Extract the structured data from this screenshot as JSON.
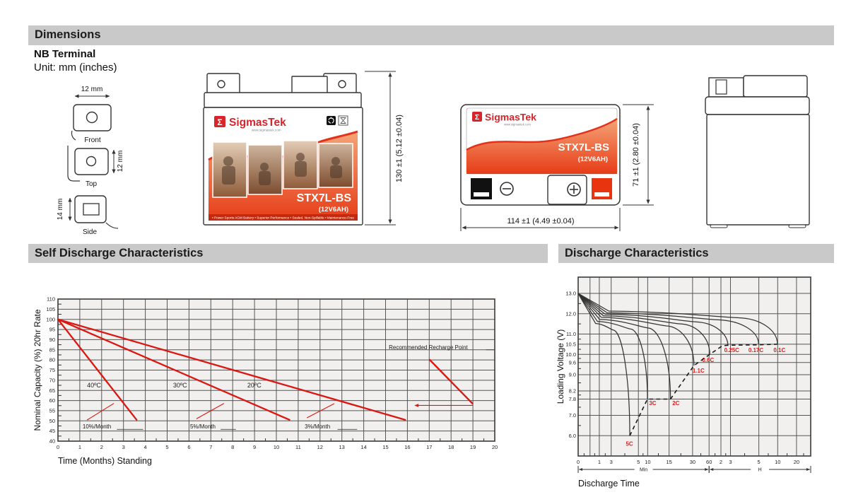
{
  "sections": {
    "dimensions": "Dimensions",
    "self_discharge": "Self Discharge Characteristics",
    "discharge": "Discharge Characteristics"
  },
  "terminal": {
    "heading": "NB Terminal",
    "unit_note": "Unit: mm (inches)",
    "views": [
      {
        "label": "Front",
        "dim": "12 mm"
      },
      {
        "label": "Top",
        "dim": "12 mm"
      },
      {
        "label": "Side",
        "dim": "14 mm"
      }
    ]
  },
  "battery": {
    "brand": "SigmasTek",
    "sigma": "Σ",
    "website": "www.sigmastek.com",
    "model": "STX7L-BS",
    "rating": "(12V6AH)",
    "features": "• Power Sports AGM Battery   • Superior Performance   • Sealed, Non-Spillable   • Maintenance-Free",
    "height_dim": "130 ±1 (5.12 ±0.04)",
    "width_dim": "114 ±1 (4.49 ±0.04)",
    "depth_dim": "71 ±1 (2.80 ±0.04)",
    "neg_symbol": "⊖",
    "pos_symbol": "⊕"
  },
  "colors": {
    "section_bar": "#c9c9c9",
    "chart_bg": "#f1f0ee",
    "grid": "#555555",
    "red_line": "#dc1712",
    "label_red": "#e02020",
    "brand_red": "#d8242a",
    "curve": "#333333"
  },
  "chart_data": [
    {
      "id": "self_discharge",
      "type": "line",
      "title": "Self Discharge Characteristics",
      "xlabel": "Time (Months) Standing",
      "ylabel": "Nominal Capacity (%) 20hr Rate",
      "xlim": [
        0,
        20
      ],
      "ylim": [
        40,
        110
      ],
      "grid": true,
      "x_ticks": [
        0,
        1,
        2,
        3,
        4,
        5,
        6,
        7,
        8,
        9,
        10,
        11,
        12,
        13,
        14,
        15,
        16,
        17,
        18,
        19,
        20
      ],
      "y_ticks": [
        110,
        105,
        100,
        95,
        90,
        85,
        80,
        75,
        70,
        65,
        60,
        55,
        50,
        45,
        40
      ],
      "series": [
        {
          "name": "40ºC",
          "label_pos": [
            1.33,
            66.5
          ],
          "points": [
            [
              0,
              100
            ],
            [
              3.6,
              50.5
            ]
          ],
          "rate": "10%/Month"
        },
        {
          "name": "30ºC",
          "label_pos": [
            5.27,
            66.5
          ],
          "points": [
            [
              0,
              100
            ],
            [
              10.6,
              50.5
            ]
          ],
          "rate": "5%/Month"
        },
        {
          "name": "20ºC",
          "label_pos": [
            8.67,
            66.5
          ],
          "points": [
            [
              0,
              100
            ],
            [
              15.9,
              50.5
            ]
          ],
          "rate": "3%/Month"
        }
      ],
      "rate_labels": [
        {
          "text": "10%/Month",
          "pos": [
            1.13,
            46.2
          ],
          "leader": [
            [
              2.7,
              45.8
            ],
            [
              3.9,
              45.8
            ]
          ],
          "pointer": [
            [
              1.33,
              50.4
            ],
            [
              2.56,
              58.6
            ]
          ]
        },
        {
          "text": "5%/Month",
          "pos": [
            6.05,
            46.2
          ],
          "leader": [
            [
              7.45,
              45.8
            ],
            [
              8.15,
              45.8
            ]
          ],
          "pointer": [
            [
              6.34,
              51.0
            ],
            [
              7.6,
              58.6
            ]
          ]
        },
        {
          "text": "3%/Month",
          "pos": [
            11.3,
            46.2
          ],
          "leader": [
            [
              12.8,
              45.8
            ],
            [
              13.7,
              45.8
            ]
          ],
          "pointer": [
            [
              11.4,
              51.5
            ],
            [
              12.65,
              58.5
            ]
          ]
        }
      ],
      "recharge": {
        "text": "Recommended Recharge Point",
        "text_pos": [
          15.15,
          85.3
        ],
        "tail": [
          [
            19.6,
            85.0
          ],
          [
            20,
            85.0
          ]
        ],
        "line": [
          [
            17.0,
            80.3
          ],
          [
            19.0,
            58.3
          ]
        ],
        "arrow": [
          [
            19.0,
            57.6
          ],
          [
            16.35,
            57.6
          ]
        ]
      }
    },
    {
      "id": "discharge",
      "type": "line",
      "title": "Discharge Characteristics",
      "xlabel": "Discharge Time",
      "ylabel": "Loading Voltage (V)",
      "ylim": [
        5.0,
        13.8
      ],
      "y_ticks": [
        13.0,
        12.0,
        11.0,
        10.5,
        10.0,
        9.6,
        9.0,
        8.2,
        7.8,
        7.0,
        6.0
      ],
      "x_ticks": [
        {
          "label": "0",
          "f": 0
        },
        {
          "label": "1",
          "f": 0.091
        },
        {
          "label": "3",
          "f": 0.142
        },
        {
          "label": "5",
          "f": 0.259
        },
        {
          "label": "10",
          "f": 0.299
        },
        {
          "label": "15",
          "f": 0.391
        },
        {
          "label": "30",
          "f": 0.492
        },
        {
          "label": "60",
          "f": 0.563
        },
        {
          "label": "2",
          "f": 0.614
        },
        {
          "label": "3",
          "f": 0.655
        },
        {
          "label": "5",
          "f": 0.777
        },
        {
          "label": "10",
          "f": 0.858
        },
        {
          "label": "20",
          "f": 0.939
        }
      ],
      "extra_gridlines": [
        0.051
      ],
      "x_axis_groups": [
        {
          "label": "Min",
          "from": 0,
          "to": 0.563
        },
        {
          "label": "H",
          "from": 0.563,
          "to": 1.0
        }
      ],
      "start_voltage": 13.0,
      "curves": [
        {
          "label": "5C",
          "plateau": 11.52,
          "xp": 0.075,
          "xk": 0.15,
          "vk": 11.2,
          "end_f": 0.222,
          "end_v": 6.0,
          "lx": 0.205,
          "lv": 5.5
        },
        {
          "label": "3C",
          "plateau": 11.62,
          "xp": 0.083,
          "xk": 0.225,
          "vk": 11.25,
          "end_f": 0.298,
          "end_v": 7.8,
          "lx": 0.305,
          "lv": 7.5
        },
        {
          "label": "2C",
          "plateau": 11.72,
          "xp": 0.092,
          "xk": 0.3,
          "vk": 11.3,
          "end_f": 0.397,
          "end_v": 7.8,
          "lx": 0.405,
          "lv": 7.5
        },
        {
          "label": "1.1C",
          "plateau": 11.82,
          "xp": 0.1,
          "xk": 0.38,
          "vk": 11.4,
          "end_f": 0.498,
          "end_v": 9.45,
          "lx": 0.492,
          "lv": 9.1
        },
        {
          "label": "0.6C",
          "plateau": 11.9,
          "xp": 0.108,
          "xk": 0.44,
          "vk": 11.5,
          "end_f": 0.566,
          "end_v": 10.0,
          "lx": 0.533,
          "lv": 9.62
        },
        {
          "label": "0.25C",
          "plateau": 11.98,
          "xp": 0.116,
          "xk": 0.505,
          "vk": 11.6,
          "end_f": 0.644,
          "end_v": 10.42,
          "lx": 0.628,
          "lv": 10.12
        },
        {
          "label": "0.17C",
          "plateau": 12.05,
          "xp": 0.124,
          "xk": 0.6,
          "vk": 11.7,
          "end_f": 0.776,
          "end_v": 10.5,
          "lx": 0.732,
          "lv": 10.12
        },
        {
          "label": "0.1C",
          "plateau": 12.13,
          "xp": 0.132,
          "xk": 0.69,
          "vk": 11.8,
          "end_f": 0.857,
          "end_v": 10.5,
          "lx": 0.84,
          "lv": 10.12
        }
      ],
      "dashed_path": [
        [
          0.222,
          6.0
        ],
        [
          0.298,
          7.8
        ],
        [
          0.397,
          7.8
        ],
        [
          0.498,
          9.45
        ],
        [
          0.566,
          10.0
        ],
        [
          0.62,
          10.42
        ],
        [
          0.644,
          10.45
        ],
        [
          0.776,
          10.47
        ],
        [
          0.857,
          10.5
        ]
      ]
    }
  ]
}
